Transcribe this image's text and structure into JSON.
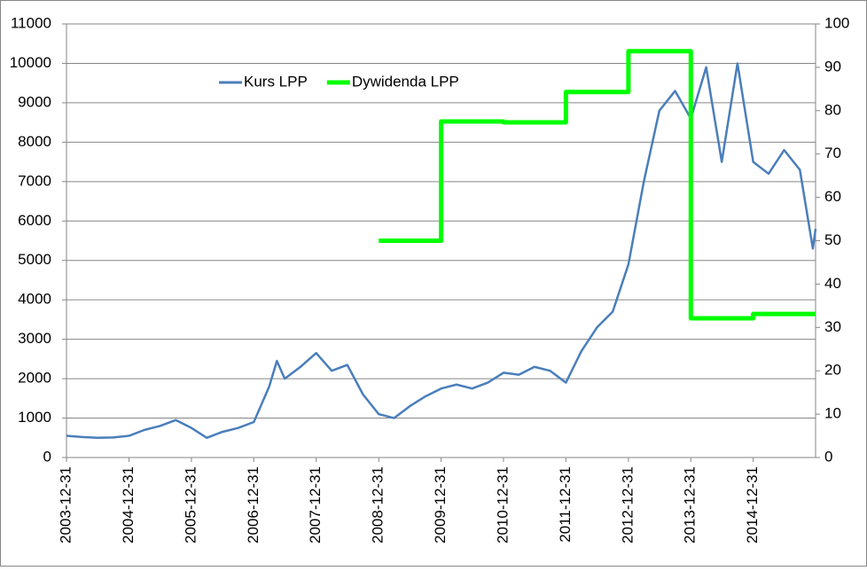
{
  "chart_data": {
    "type": "line",
    "xlim": [
      "2003-12-31",
      "2015-12-31"
    ],
    "xticks": [
      "2003-12-31",
      "2004-12-31",
      "2005-12-31",
      "2006-12-31",
      "2007-12-31",
      "2008-12-31",
      "2009-12-31",
      "2010-12-31",
      "2011-12-31",
      "2012-12-31",
      "2013-12-31",
      "2014-12-31"
    ],
    "ylim": [
      0,
      11000
    ],
    "yticks": [
      0,
      1000,
      2000,
      3000,
      4000,
      5000,
      6000,
      7000,
      8000,
      9000,
      10000,
      11000
    ],
    "y2lim": [
      0,
      100
    ],
    "y2ticks": [
      0,
      10,
      20,
      30,
      40,
      50,
      60,
      70,
      80,
      90,
      100
    ],
    "grid": true,
    "legend": "top-left",
    "series": [
      {
        "name": "Kurs LPP",
        "color": "#4a7ebb",
        "axis": "y",
        "x": [
          "2003-12-31",
          "2004-03-31",
          "2004-06-30",
          "2004-09-30",
          "2004-12-31",
          "2005-03-31",
          "2005-06-30",
          "2005-09-30",
          "2005-12-31",
          "2006-03-31",
          "2006-06-30",
          "2006-09-30",
          "2006-12-31",
          "2007-03-31",
          "2007-05-15",
          "2007-06-30",
          "2007-09-30",
          "2007-12-31",
          "2008-03-31",
          "2008-06-30",
          "2008-09-30",
          "2008-12-31",
          "2009-03-31",
          "2009-06-30",
          "2009-09-30",
          "2009-12-31",
          "2010-03-31",
          "2010-06-30",
          "2010-09-30",
          "2010-12-31",
          "2011-03-31",
          "2011-06-30",
          "2011-09-30",
          "2011-12-31",
          "2012-03-31",
          "2012-06-30",
          "2012-09-30",
          "2012-12-31",
          "2013-03-31",
          "2013-06-30",
          "2013-09-30",
          "2013-12-31",
          "2014-03-31",
          "2014-06-30",
          "2014-09-30",
          "2014-12-31",
          "2015-03-31",
          "2015-06-30",
          "2015-09-30",
          "2015-12-15",
          "2015-12-31"
        ],
        "values": [
          550,
          520,
          500,
          510,
          550,
          700,
          800,
          950,
          750,
          500,
          650,
          750,
          900,
          1800,
          2450,
          2000,
          2300,
          2650,
          2200,
          2350,
          1600,
          1100,
          1000,
          1300,
          1550,
          1750,
          1850,
          1750,
          1900,
          2150,
          2100,
          2300,
          2200,
          1900,
          2700,
          3300,
          3700,
          4900,
          7000,
          8800,
          9300,
          8600,
          9900,
          7500,
          10000,
          7500,
          7200,
          7800,
          7300,
          5300,
          5800
        ]
      },
      {
        "name": "Dywidenda LPP",
        "color": "#00ff00",
        "axis": "y2",
        "x": [
          "2008-12-31",
          "2009-12-31",
          "2009-12-31",
          "2010-12-31",
          "2010-12-31",
          "2011-12-31",
          "2011-12-31",
          "2012-12-31",
          "2012-12-31",
          "2013-12-31",
          "2013-12-31",
          "2014-12-31",
          "2014-12-31",
          "2015-12-31"
        ],
        "values": [
          50,
          50,
          77.5,
          77.5,
          77.3,
          77.3,
          84.3,
          84.3,
          93.7,
          93.7,
          32.1,
          32.1,
          33.1,
          33.1
        ]
      }
    ]
  }
}
